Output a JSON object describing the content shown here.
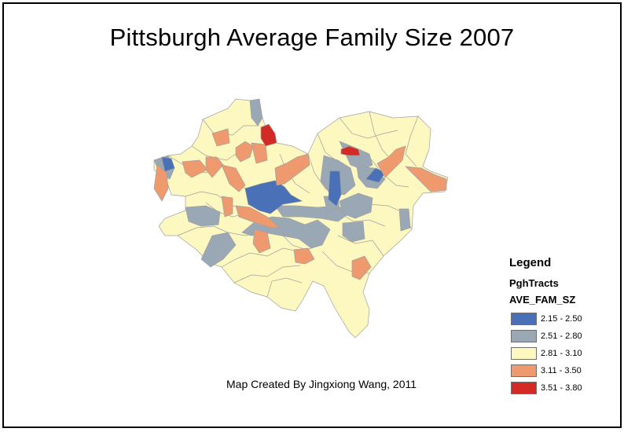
{
  "title": "Pittsburgh Average Family Size 2007",
  "credit": "Map Created By Jingxiong Wang, 2011",
  "legend": {
    "title": "Legend",
    "layer": "PghTracts",
    "field": "AVE_FAM_SZ",
    "classes": [
      {
        "label": "2.15 - 2.50",
        "color": "#4a70b8"
      },
      {
        "label": "2.51 - 2.80",
        "color": "#9aa8b6"
      },
      {
        "label": "2.81 - 3.10",
        "color": "#fcf8c0"
      },
      {
        "label": "3.11 - 3.50",
        "color": "#ee9a6e"
      },
      {
        "label": "3.51 - 3.80",
        "color": "#d42a25"
      }
    ]
  },
  "colors": {
    "tract_border": "#a0a0a0",
    "background": "#ffffff"
  }
}
